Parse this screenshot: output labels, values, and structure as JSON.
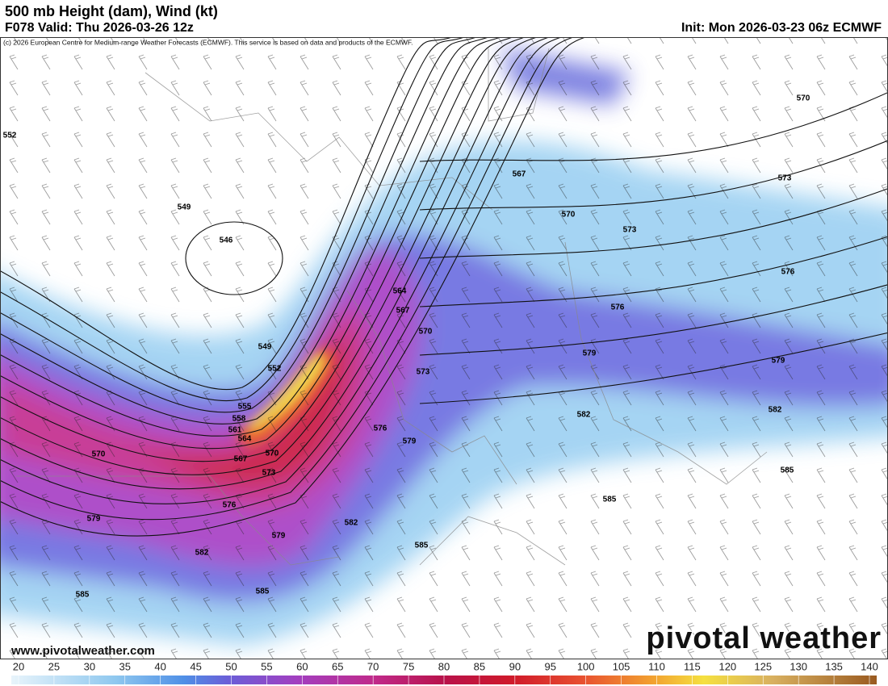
{
  "header": {
    "title": "500 mb Height (dam), Wind (kt)",
    "valid": "F078 Valid: Thu 2026-03-26 12z",
    "init": "Init: Mon 2026-03-23 06z ECMWF",
    "credit": "(c) 2026 European Centre for Medium-range Weather Forecasts (ECMWF). This service is based on data and products of the ECMWF."
  },
  "map": {
    "contour_labels": [
      "552",
      "549",
      "546",
      "549",
      "552",
      "555",
      "558",
      "561",
      "564",
      "567",
      "570",
      "573",
      "576",
      "579",
      "570",
      "579",
      "582",
      "585",
      "585",
      "585",
      "582",
      "579",
      "576",
      "573",
      "570",
      "567",
      "564",
      "567",
      "570",
      "573",
      "570",
      "573",
      "576",
      "576",
      "579",
      "579",
      "582",
      "582",
      "585",
      "585"
    ]
  },
  "colorbar": {
    "ticks": [
      20,
      25,
      30,
      35,
      40,
      45,
      50,
      55,
      60,
      65,
      70,
      75,
      80,
      85,
      90,
      95,
      100,
      105,
      110,
      115,
      120,
      125,
      130,
      135,
      140
    ]
  },
  "footer": {
    "url": "www.pivotalweather.com",
    "logo": "pivotal weather"
  }
}
